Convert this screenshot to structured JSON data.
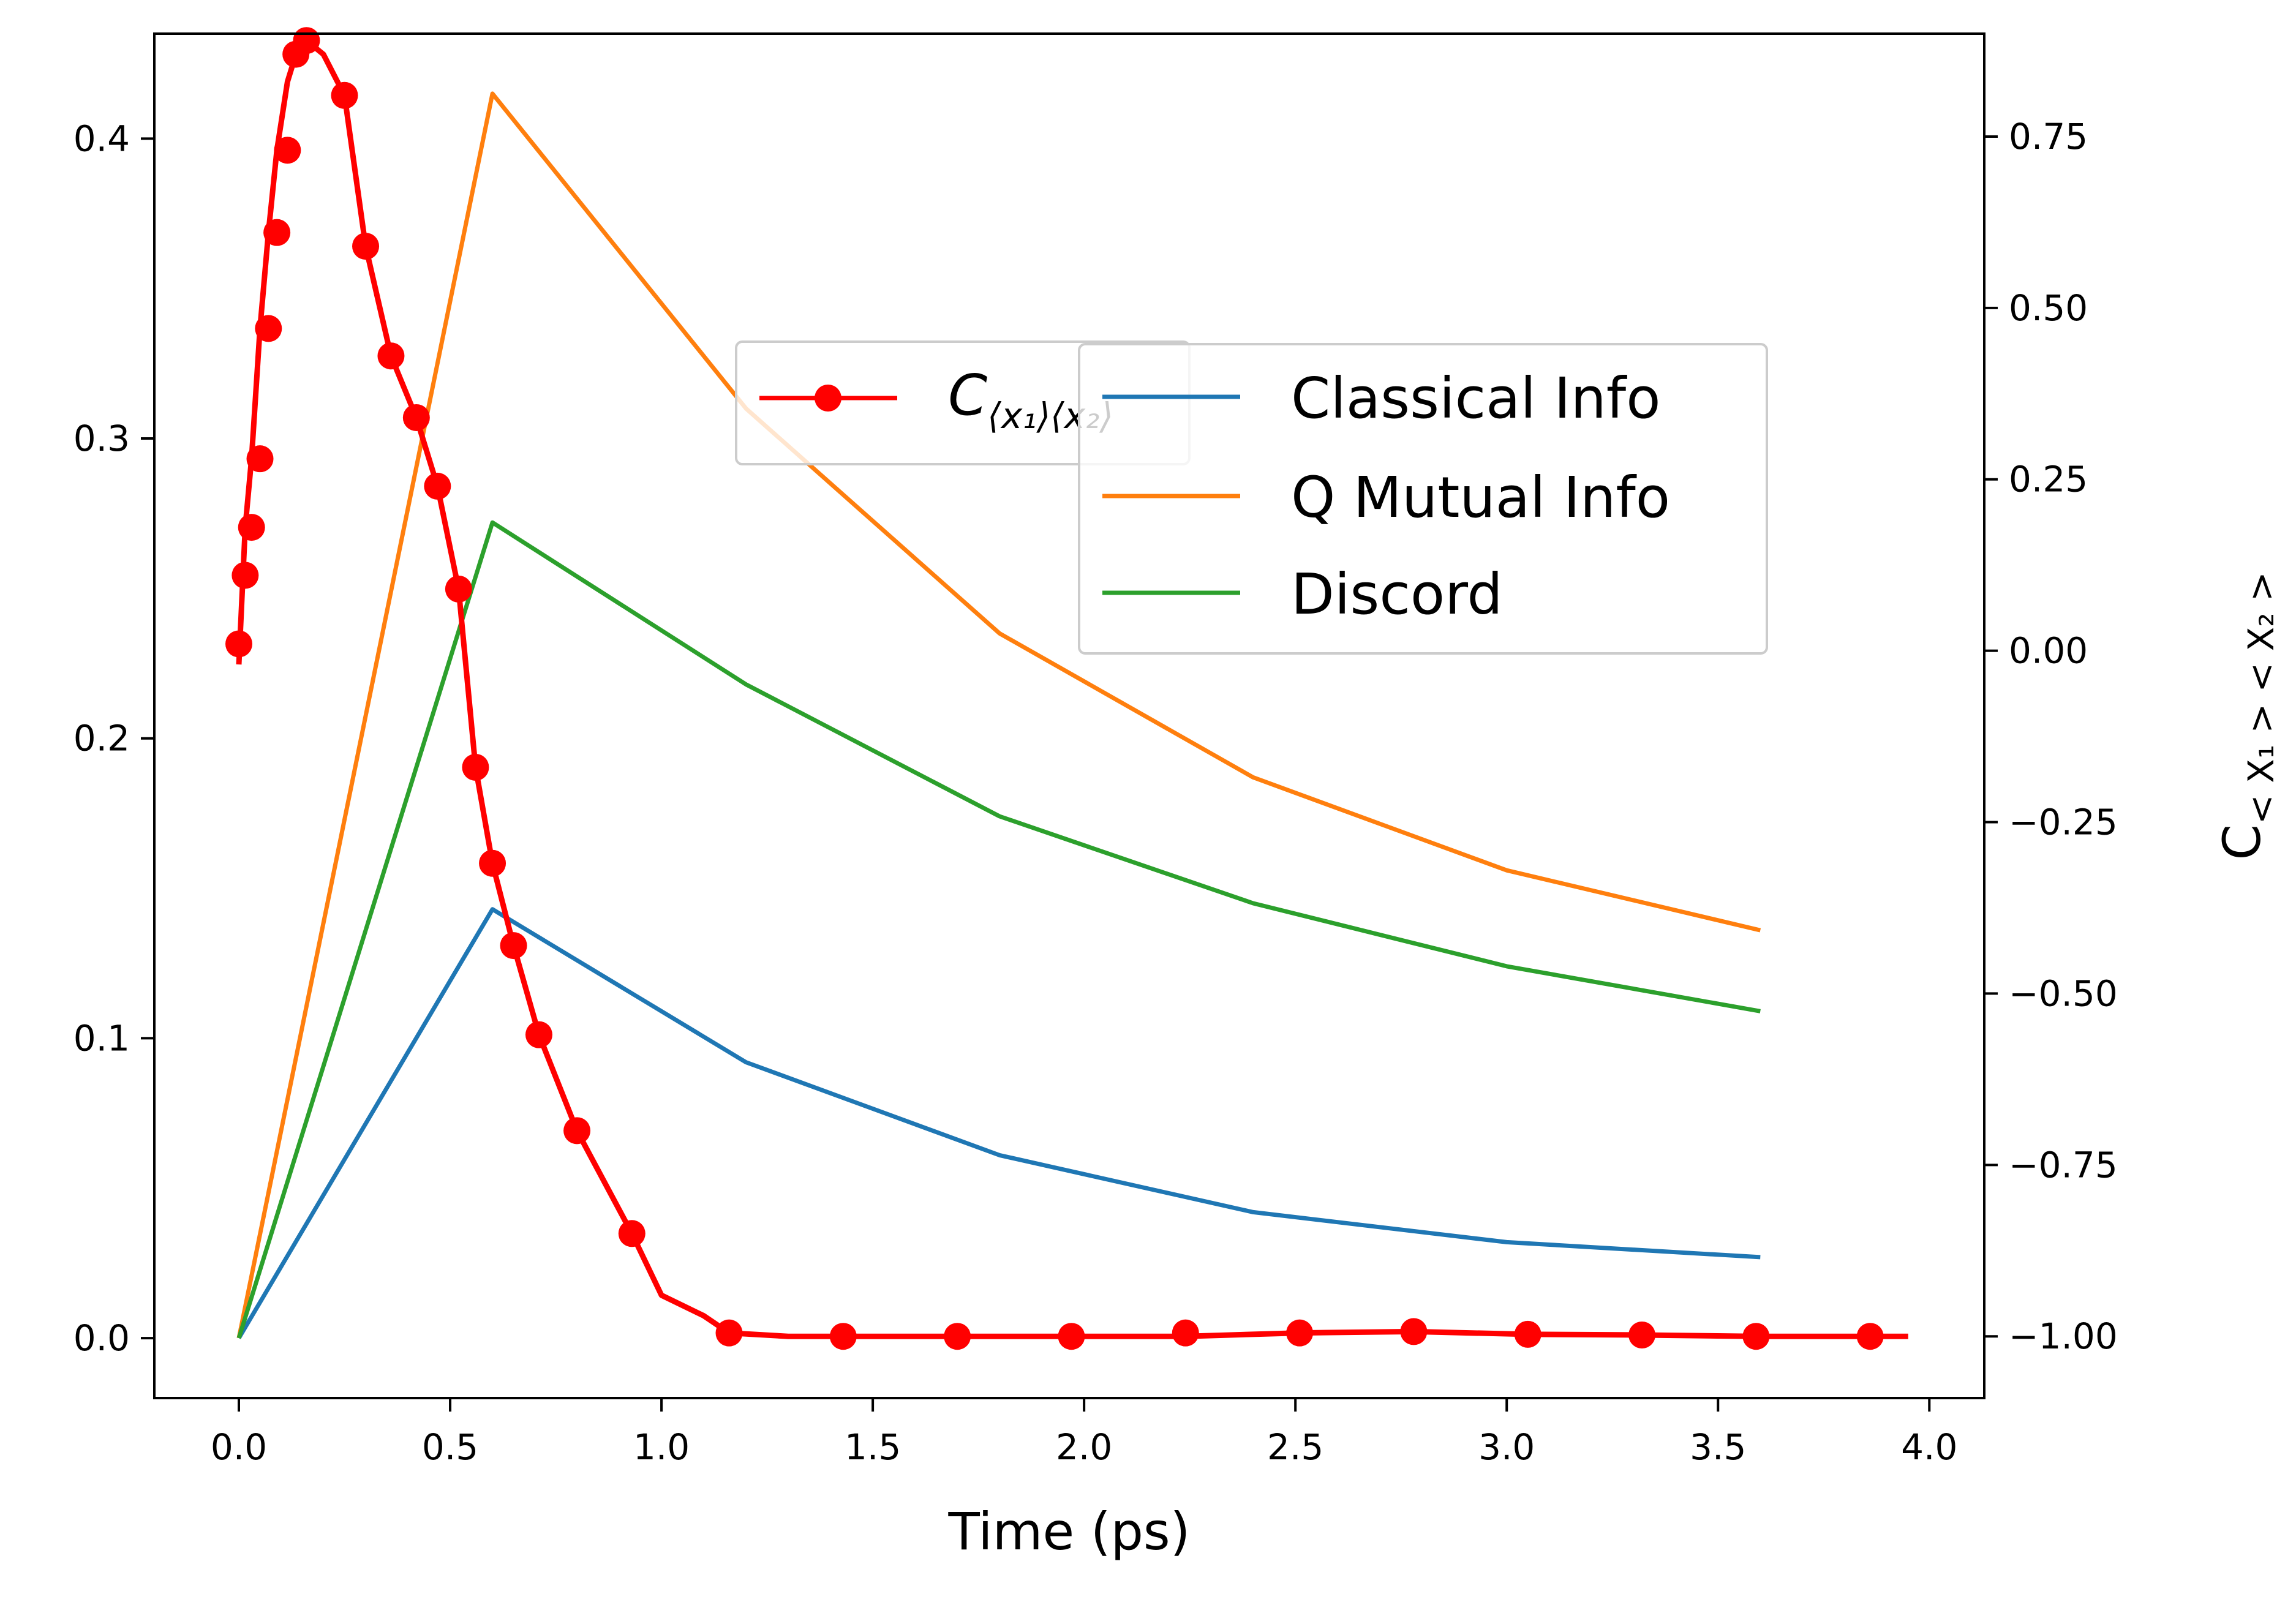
{
  "chart_data": {
    "type": "line",
    "xlabel": "Time (ps)",
    "y2label": "C",
    "y2label_subscript": "< X₁ > < X₂ >",
    "xlim": [
      -0.2,
      4.13
    ],
    "ylim": [
      -0.02,
      0.435
    ],
    "y2lim": [
      -1.09,
      0.9
    ],
    "x_ticks": [
      "0.0",
      "0.5",
      "1.0",
      "1.5",
      "2.0",
      "2.5",
      "3.0",
      "3.5",
      "4.0"
    ],
    "y_ticks": [
      "0.0",
      "0.1",
      "0.2",
      "0.3",
      "0.4"
    ],
    "y2_ticks": [
      "−1.00",
      "−0.75",
      "−0.50",
      "−0.25",
      "0.00",
      "0.25",
      "0.50",
      "0.75"
    ],
    "series": [
      {
        "name": "Classical Info",
        "color": "#1f77b4",
        "axis": "left",
        "x": [
          0.0,
          0.6,
          1.2,
          1.8,
          2.4,
          3.0,
          3.6
        ],
        "y": [
          0.0,
          0.143,
          0.092,
          0.061,
          0.042,
          0.032,
          0.027
        ]
      },
      {
        "name": "Q Mutual Info",
        "color": "#ff7f0e",
        "axis": "left",
        "x": [
          0.0,
          0.6,
          1.2,
          1.8,
          2.4,
          3.0,
          3.6
        ],
        "y": [
          0.0,
          0.415,
          0.31,
          0.235,
          0.187,
          0.156,
          0.136
        ]
      },
      {
        "name": "Discord",
        "color": "#2ca02c",
        "axis": "left",
        "x": [
          0.0,
          0.6,
          1.2,
          1.8,
          2.4,
          3.0,
          3.6
        ],
        "y": [
          0.0,
          0.272,
          0.218,
          0.174,
          0.145,
          0.124,
          0.109
        ]
      },
      {
        "name": "C",
        "name_subscript": "⟨x₁⟩⟨x₂⟩",
        "color": "#ff0000",
        "axis": "right",
        "marker": "circle",
        "x": [
          0.0,
          0.015,
          0.03,
          0.05,
          0.07,
          0.09,
          0.115,
          0.135,
          0.16,
          0.2,
          0.25,
          0.3,
          0.36,
          0.42,
          0.47,
          0.52,
          0.56,
          0.6,
          0.65,
          0.71,
          0.8,
          0.93,
          1.0,
          1.1,
          1.16,
          1.3,
          1.43,
          1.6,
          1.7,
          1.97,
          2.24,
          2.51,
          2.78,
          3.05,
          3.32,
          3.59,
          3.86,
          3.95
        ],
        "y": [
          -0.02,
          0.18,
          0.28,
          0.47,
          0.61,
          0.73,
          0.83,
          0.87,
          0.89,
          0.87,
          0.81,
          0.59,
          0.43,
          0.34,
          0.24,
          0.09,
          -0.17,
          -0.31,
          -0.43,
          -0.56,
          -0.7,
          -0.85,
          -0.94,
          -0.97,
          -0.995,
          -1.0,
          -1.0,
          -1.0,
          -1.0,
          -1.0,
          -1.0,
          -0.995,
          -0.993,
          -0.997,
          -0.998,
          -1.0,
          -1.0,
          -1.0
        ],
        "marker_x": [
          0.0,
          0.015,
          0.03,
          0.05,
          0.07,
          0.09,
          0.115,
          0.135,
          0.16,
          0.25,
          0.3,
          0.36,
          0.42,
          0.47,
          0.52,
          0.56,
          0.6,
          0.65,
          0.71,
          0.8,
          0.93,
          1.16,
          1.43,
          1.7,
          1.97,
          2.24,
          2.51,
          2.78,
          3.05,
          3.32,
          3.59,
          3.86
        ],
        "marker_y": [
          0.01,
          0.11,
          0.18,
          0.28,
          0.47,
          0.61,
          0.73,
          0.87,
          0.89,
          0.81,
          0.59,
          0.43,
          0.34,
          0.24,
          0.09,
          -0.17,
          -0.31,
          -0.43,
          -0.56,
          -0.7,
          -0.85,
          -0.995,
          -1.0,
          -1.0,
          -1.0,
          -0.995,
          -0.995,
          -0.993,
          -0.997,
          -0.998,
          -1.0,
          -1.0
        ]
      }
    ],
    "legends": [
      {
        "placement": "upper-center",
        "entries": [
          "C"
        ]
      },
      {
        "placement": "upper-right-center",
        "entries": [
          "Classical Info",
          "Q Mutual Info",
          "Discord"
        ]
      }
    ],
    "grid": false
  }
}
